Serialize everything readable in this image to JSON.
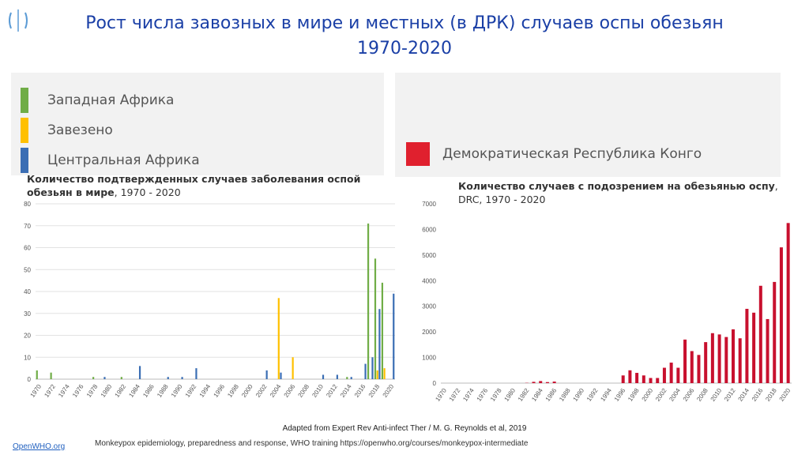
{
  "slide": {
    "title_line1": "Рост числа завозных   в мире и местных (в ДРК) случаев оспы обезьян",
    "title_line2": "1970-2020",
    "credit": "Adapted from Expert Rev Anti-infect Ther / M. G. Reynolds et al, 2019",
    "footer": "Monkeypox epidemiology, preparedness and response, WHO training https://openwho.org/courses/monkeypox-intermediate",
    "link": "OpenWHO.org"
  },
  "legend_left": [
    {
      "label": "Западная Африка",
      "color": "#70ad47"
    },
    {
      "label": "Завезено",
      "color": "#ffc000"
    },
    {
      "label": "Центральная Африка",
      "color": "#3b6eb4"
    }
  ],
  "legend_right": [
    {
      "label": "Демократическая Республика Конго",
      "color": "#e0202e"
    }
  ],
  "chart_data": [
    {
      "type": "bar",
      "title_bold": "Количество подтвержденных случаев заболевания оспой обезьян в мире",
      "title_rest": ", 1970 - 2020",
      "xlabel": "",
      "ylabel": "",
      "ylim": [
        0,
        80
      ],
      "yticks": [
        0,
        10,
        20,
        30,
        40,
        50,
        60,
        70,
        80
      ],
      "xtick_labels": [
        "1970",
        "1972",
        "1974",
        "1976",
        "1978",
        "1980",
        "1982",
        "1984",
        "1986",
        "1988",
        "1990",
        "1992",
        "1994",
        "1996",
        "1998",
        "2000",
        "2002",
        "2004",
        "2006",
        "2008",
        "2010",
        "2012",
        "2014",
        "2016",
        "2018",
        "2020"
      ],
      "x": [
        1970,
        1971,
        1972,
        1973,
        1974,
        1975,
        1976,
        1977,
        1978,
        1979,
        1980,
        1981,
        1982,
        1983,
        1984,
        1985,
        1986,
        1987,
        1988,
        1989,
        1990,
        1991,
        1992,
        1993,
        1994,
        1995,
        1996,
        1997,
        1998,
        1999,
        2000,
        2001,
        2002,
        2003,
        2004,
        2005,
        2006,
        2007,
        2008,
        2009,
        2010,
        2011,
        2012,
        2013,
        2014,
        2015,
        2016,
        2017,
        2018,
        2019,
        2020
      ],
      "series": [
        {
          "name": "Западная Африка",
          "color": "#70ad47",
          "values": [
            4,
            0,
            3,
            0,
            0,
            0,
            0,
            0,
            1,
            0,
            0,
            0,
            1,
            0,
            0,
            0,
            0,
            0,
            0,
            0,
            0,
            0,
            0,
            0,
            0,
            0,
            0,
            0,
            0,
            0,
            0,
            0,
            0,
            0,
            0,
            0,
            0,
            0,
            0,
            0,
            0,
            0,
            0,
            0,
            1,
            0,
            0,
            71,
            55,
            44,
            0
          ]
        },
        {
          "name": "Завезено",
          "color": "#ffc000",
          "values": [
            0,
            0,
            0,
            0,
            0,
            0,
            0,
            0,
            0,
            0,
            0,
            0,
            0,
            0,
            0,
            0,
            0,
            0,
            0,
            0,
            0,
            0,
            0,
            0,
            0,
            0,
            0,
            0,
            0,
            0,
            0,
            0,
            0,
            0,
            37,
            0,
            10,
            0,
            0,
            0,
            0,
            0,
            0,
            0,
            0,
            0,
            0,
            0,
            4,
            5,
            0
          ]
        },
        {
          "name": "Центральная Африка",
          "color": "#3b6eb4",
          "values": [
            0,
            0,
            0,
            0,
            0,
            0,
            0,
            0,
            0,
            1,
            0,
            0,
            0,
            0,
            6,
            0,
            0,
            0,
            1,
            0,
            1,
            0,
            5,
            0,
            0,
            0,
            0,
            0,
            0,
            0,
            0,
            0,
            4,
            0,
            3,
            0,
            0,
            0,
            0,
            0,
            2,
            0,
            2,
            0,
            1,
            0,
            7,
            10,
            32,
            0,
            39
          ]
        }
      ]
    },
    {
      "type": "bar",
      "title_bold": "Количество случаев с подозрением на обезьянью оспу",
      "title_rest": ", DRC, 1970 - 2020",
      "xlabel": "",
      "ylabel": "",
      "ylim": [
        0,
        7000
      ],
      "yticks": [
        0,
        1000,
        2000,
        3000,
        4000,
        5000,
        6000,
        7000
      ],
      "xtick_labels": [
        "1970",
        "1972",
        "1974",
        "1976",
        "1978",
        "1980",
        "1982",
        "1984",
        "1986",
        "1988",
        "1990",
        "1992",
        "1994",
        "1996",
        "1998",
        "2000",
        "2002",
        "2004",
        "2006",
        "2008",
        "2010",
        "2012",
        "2014",
        "2016",
        "2018",
        "2020"
      ],
      "x": [
        1970,
        1971,
        1972,
        1973,
        1974,
        1975,
        1976,
        1977,
        1978,
        1979,
        1980,
        1981,
        1982,
        1983,
        1984,
        1985,
        1986,
        1987,
        1988,
        1989,
        1990,
        1991,
        1992,
        1993,
        1994,
        1995,
        1996,
        1997,
        1998,
        1999,
        2000,
        2001,
        2002,
        2003,
        2004,
        2005,
        2006,
        2007,
        2008,
        2009,
        2010,
        2011,
        2012,
        2013,
        2014,
        2015,
        2016,
        2017,
        2018,
        2019,
        2020
      ],
      "series": [
        {
          "name": "Демократическая Республика Конго",
          "color": "#c8102e",
          "values": [
            0,
            0,
            0,
            0,
            0,
            0,
            0,
            0,
            0,
            0,
            0,
            0,
            10,
            50,
            80,
            40,
            60,
            0,
            0,
            0,
            0,
            0,
            0,
            0,
            0,
            0,
            300,
            500,
            400,
            300,
            200,
            200,
            600,
            800,
            600,
            1700,
            1250,
            1100,
            1600,
            1950,
            1900,
            1800,
            2100,
            1750,
            2900,
            2750,
            3800,
            2500,
            3950,
            5300,
            6250
          ]
        }
      ]
    }
  ]
}
